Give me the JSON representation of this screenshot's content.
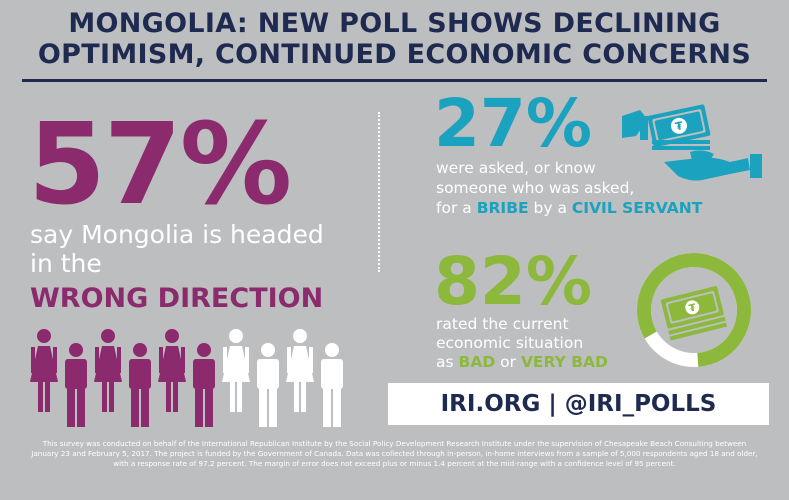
{
  "header": {
    "title_line1": "MONGOLIA: NEW POLL SHOWS DECLINING",
    "title_line2": "OPTIMISM, CONTINUED ECONOMIC CONCERNS"
  },
  "left_stat": {
    "percent": "57%",
    "text_line1": "say Mongolia is headed",
    "text_line2": "in the",
    "highlight": "WRONG DIRECTION",
    "people_total": 10,
    "people_highlighted": 6,
    "highlight_color": "#8c2a6e",
    "other_color": "#ffffff"
  },
  "bribe_stat": {
    "percent": "27%",
    "line1": "were asked, or know",
    "line2": "someone who was asked,",
    "line3_prefix": "for a",
    "bribe_word": "BRIBE",
    "line3_mid": "by a",
    "civil_servant": "CIVIL SERVANT",
    "color": "#1aa2be",
    "icon": "money-hand-icon"
  },
  "economy_stat": {
    "percent": "82%",
    "line1": "rated the current",
    "line2": "economic situation",
    "line3_prefix": "as",
    "bad": "BAD",
    "or": "or",
    "very_bad": "VERY BAD",
    "color": "#8cb83c",
    "ring_fraction": 0.82,
    "icon": "money-ring-icon"
  },
  "banner": {
    "text": "IRI.ORG  |  @IRI_POLLS"
  },
  "footer": {
    "text": "This survey was conducted on behalf of the International Republican Institute by the Social Policy Development Research Institute under the supervision of Chesapeake Beach Consulting between January 23 and February 5, 2017. The project is funded by the Government of Canada. Data was collected through in-person, in-home interviews from a sample of 5,000 respondents aged 18 and older, with a response rate of 97.2 percent. The margin of error does not exceed plus or minus 1.4 percent at the mid-range with a confidence level of 95 percent."
  }
}
